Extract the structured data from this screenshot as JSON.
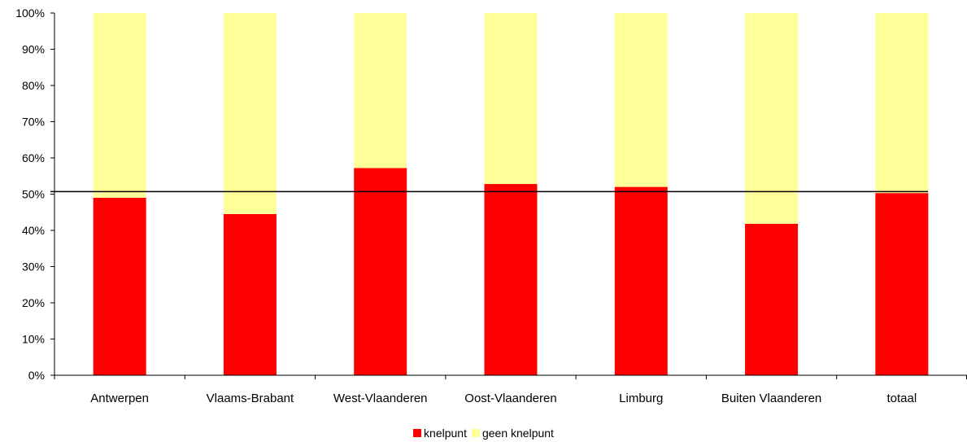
{
  "chart_data": {
    "type": "bar",
    "stacked": true,
    "categories": [
      "Antwerpen",
      "Vlaams-Brabant",
      "West-Vlaanderen",
      "Oost-Vlaanderen",
      "Limburg",
      "Buiten Vlaanderen",
      "totaal"
    ],
    "series": [
      {
        "name": "knelpunt",
        "color": "#ff0000",
        "values": [
          49,
          44.5,
          57.2,
          52.8,
          52,
          41.8,
          50.3
        ]
      },
      {
        "name": "geen knelpunt",
        "color": "#ffff99",
        "values": [
          51,
          55.5,
          42.8,
          47.2,
          48,
          58.2,
          49.7
        ]
      }
    ],
    "reference_line": 50.7,
    "ylim": [
      0,
      100
    ],
    "yticks": [
      "0%",
      "10%",
      "20%",
      "30%",
      "40%",
      "50%",
      "60%",
      "70%",
      "80%",
      "90%",
      "100%"
    ],
    "legend_position": "bottom",
    "grid": false
  }
}
